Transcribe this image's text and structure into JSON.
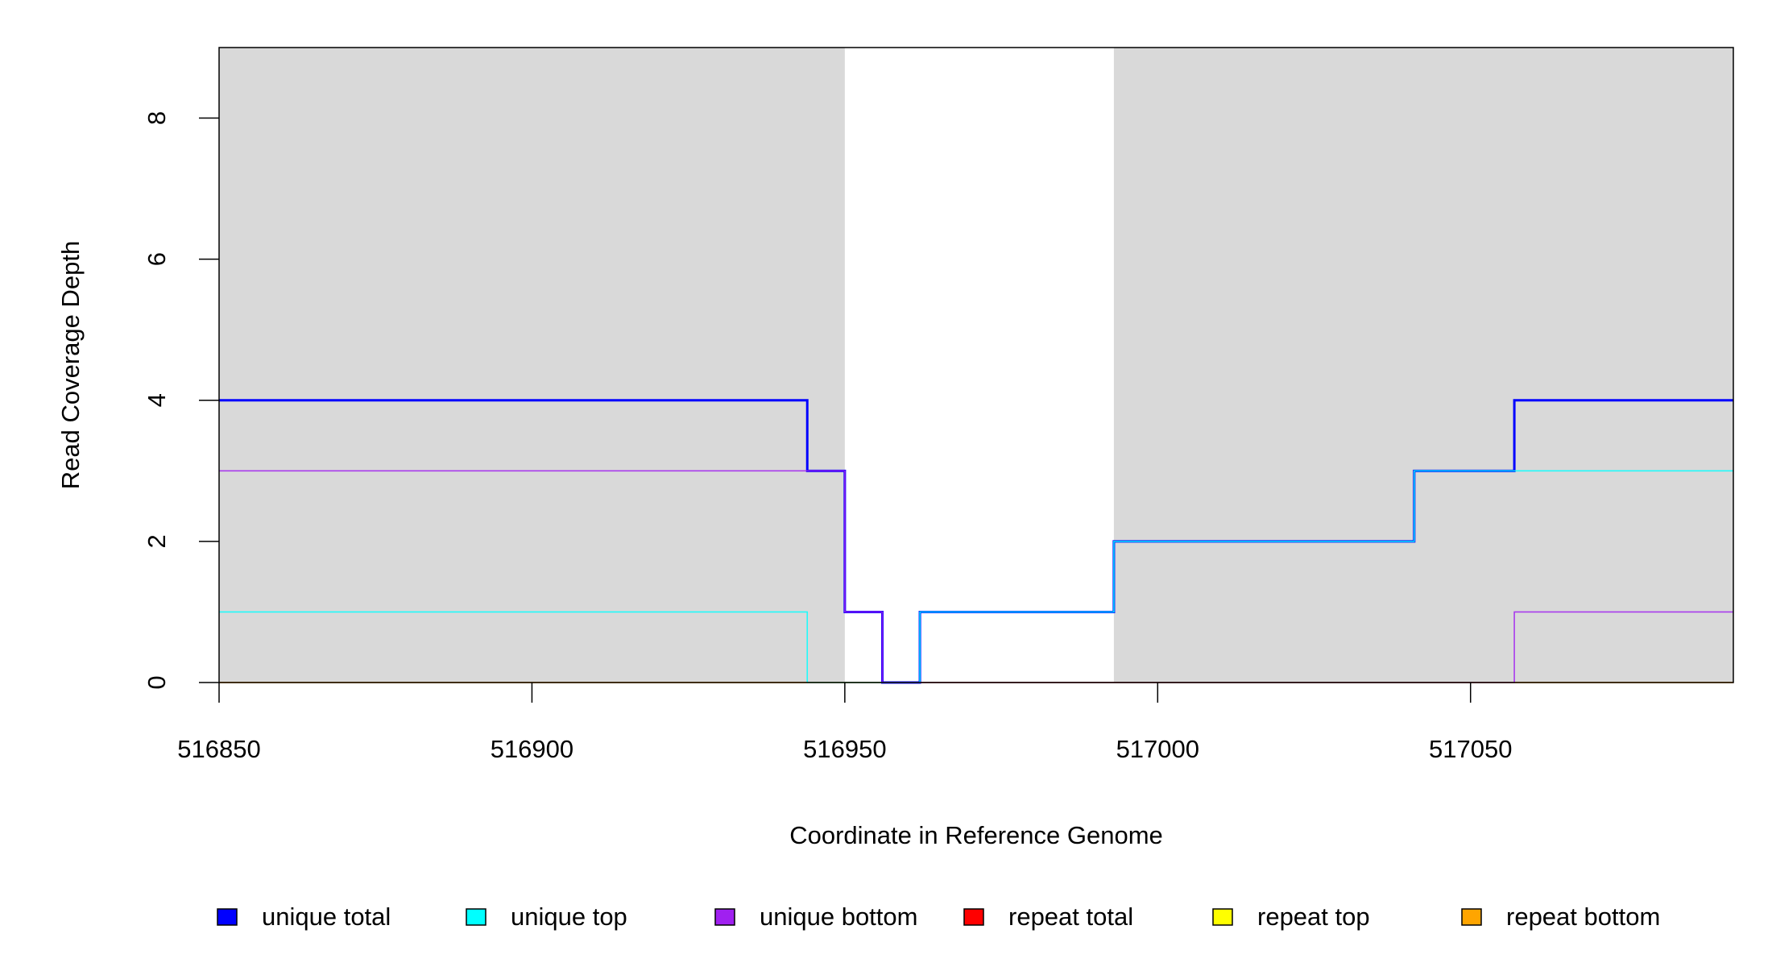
{
  "chart_data": {
    "type": "line",
    "step": true,
    "title": "",
    "xlabel": "Coordinate in Reference Genome",
    "ylabel": "Read Coverage Depth",
    "xlim": [
      516850,
      517092
    ],
    "ylim": [
      0,
      9
    ],
    "xticks": [
      516850,
      516900,
      516950,
      517000,
      517050
    ],
    "yticks": [
      0,
      2,
      4,
      6,
      8
    ],
    "grid": false,
    "shaded_regions": [
      {
        "from": 516850,
        "to": 516950,
        "color": "#d9d9d9"
      },
      {
        "from": 516993,
        "to": 517092,
        "color": "#d9d9d9"
      }
    ],
    "legend_position": "bottom",
    "series": [
      {
        "name": "unique total",
        "color": "#0000ff",
        "steps": [
          [
            516850,
            4
          ],
          [
            516944,
            3
          ],
          [
            516950,
            1
          ],
          [
            516956,
            0
          ],
          [
            516962,
            1
          ],
          [
            516993,
            2
          ],
          [
            517041,
            3
          ],
          [
            517057,
            4
          ]
        ]
      },
      {
        "name": "unique top",
        "color": "#00ffff",
        "steps": [
          [
            516850,
            1
          ],
          [
            516944,
            0
          ],
          [
            516962,
            1
          ],
          [
            516993,
            2
          ],
          [
            517041,
            3
          ]
        ]
      },
      {
        "name": "unique bottom",
        "color": "#a020f0",
        "steps": [
          [
            516850,
            3
          ],
          [
            516950,
            1
          ],
          [
            516956,
            0
          ],
          [
            517057,
            1
          ]
        ]
      },
      {
        "name": "repeat total",
        "color": "#ff0000",
        "steps": [
          [
            516850,
            0
          ]
        ]
      },
      {
        "name": "repeat top",
        "color": "#ffff00",
        "steps": [
          [
            516850,
            0
          ]
        ]
      },
      {
        "name": "repeat bottom",
        "color": "#ffa500",
        "steps": [
          [
            516850,
            0
          ]
        ]
      }
    ]
  }
}
